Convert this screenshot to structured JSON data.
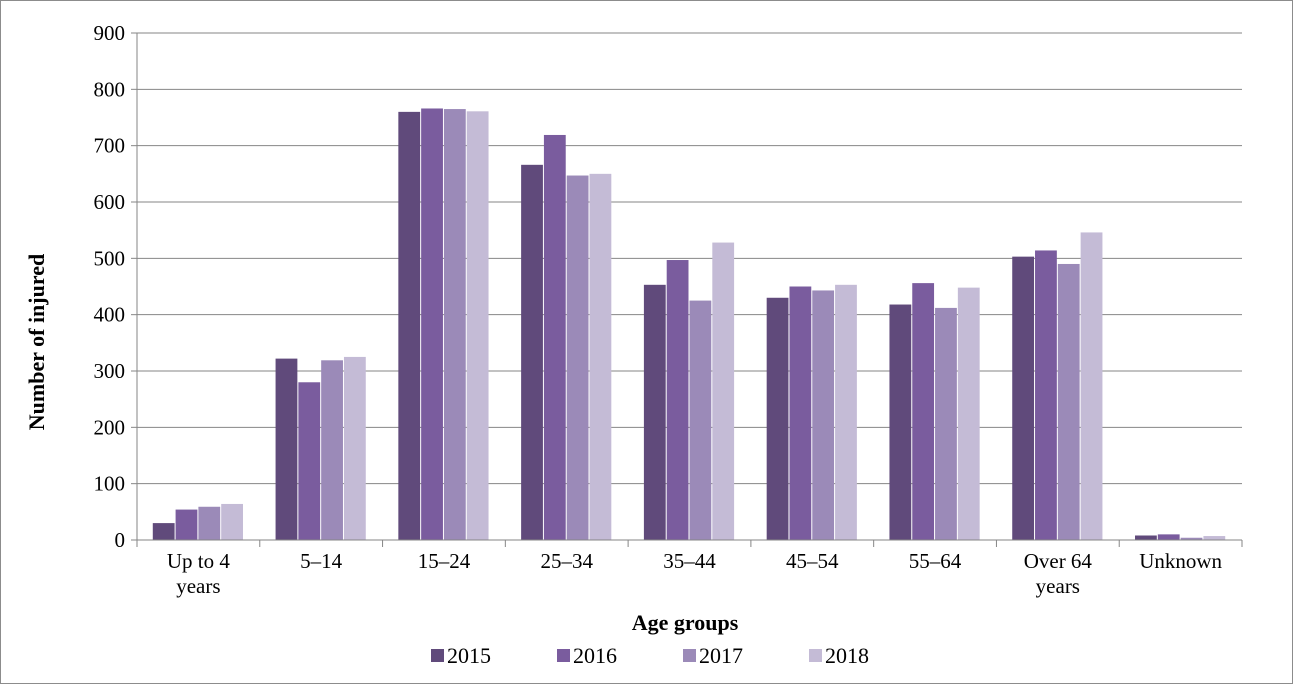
{
  "chart_data": {
    "type": "bar",
    "title": "",
    "xlabel": "Age groups",
    "ylabel": "Number of injured",
    "ylim": [
      0,
      900
    ],
    "yticks": [
      0,
      100,
      200,
      300,
      400,
      500,
      600,
      700,
      800,
      900
    ],
    "grid": true,
    "legend_position": "bottom",
    "categories": [
      [
        "Up to 4",
        "years"
      ],
      [
        "5–14"
      ],
      [
        "15–24"
      ],
      [
        "25–34"
      ],
      [
        "35–44"
      ],
      [
        "45–54"
      ],
      [
        "55–64"
      ],
      [
        "Over 64",
        "years"
      ],
      [
        "Unknown"
      ]
    ],
    "series": [
      {
        "name": "2015",
        "color": "#604a7b",
        "values": [
          30,
          322,
          760,
          666,
          453,
          430,
          418,
          503,
          8
        ]
      },
      {
        "name": "2016",
        "color": "#7a5c9e",
        "values": [
          54,
          280,
          766,
          719,
          497,
          450,
          456,
          514,
          10
        ]
      },
      {
        "name": "2017",
        "color": "#9b8ab8",
        "values": [
          59,
          319,
          765,
          647,
          425,
          443,
          412,
          490,
          4
        ]
      },
      {
        "name": "2018",
        "color": "#c4bbd6",
        "values": [
          64,
          325,
          761,
          650,
          528,
          453,
          448,
          546,
          7
        ]
      }
    ]
  }
}
